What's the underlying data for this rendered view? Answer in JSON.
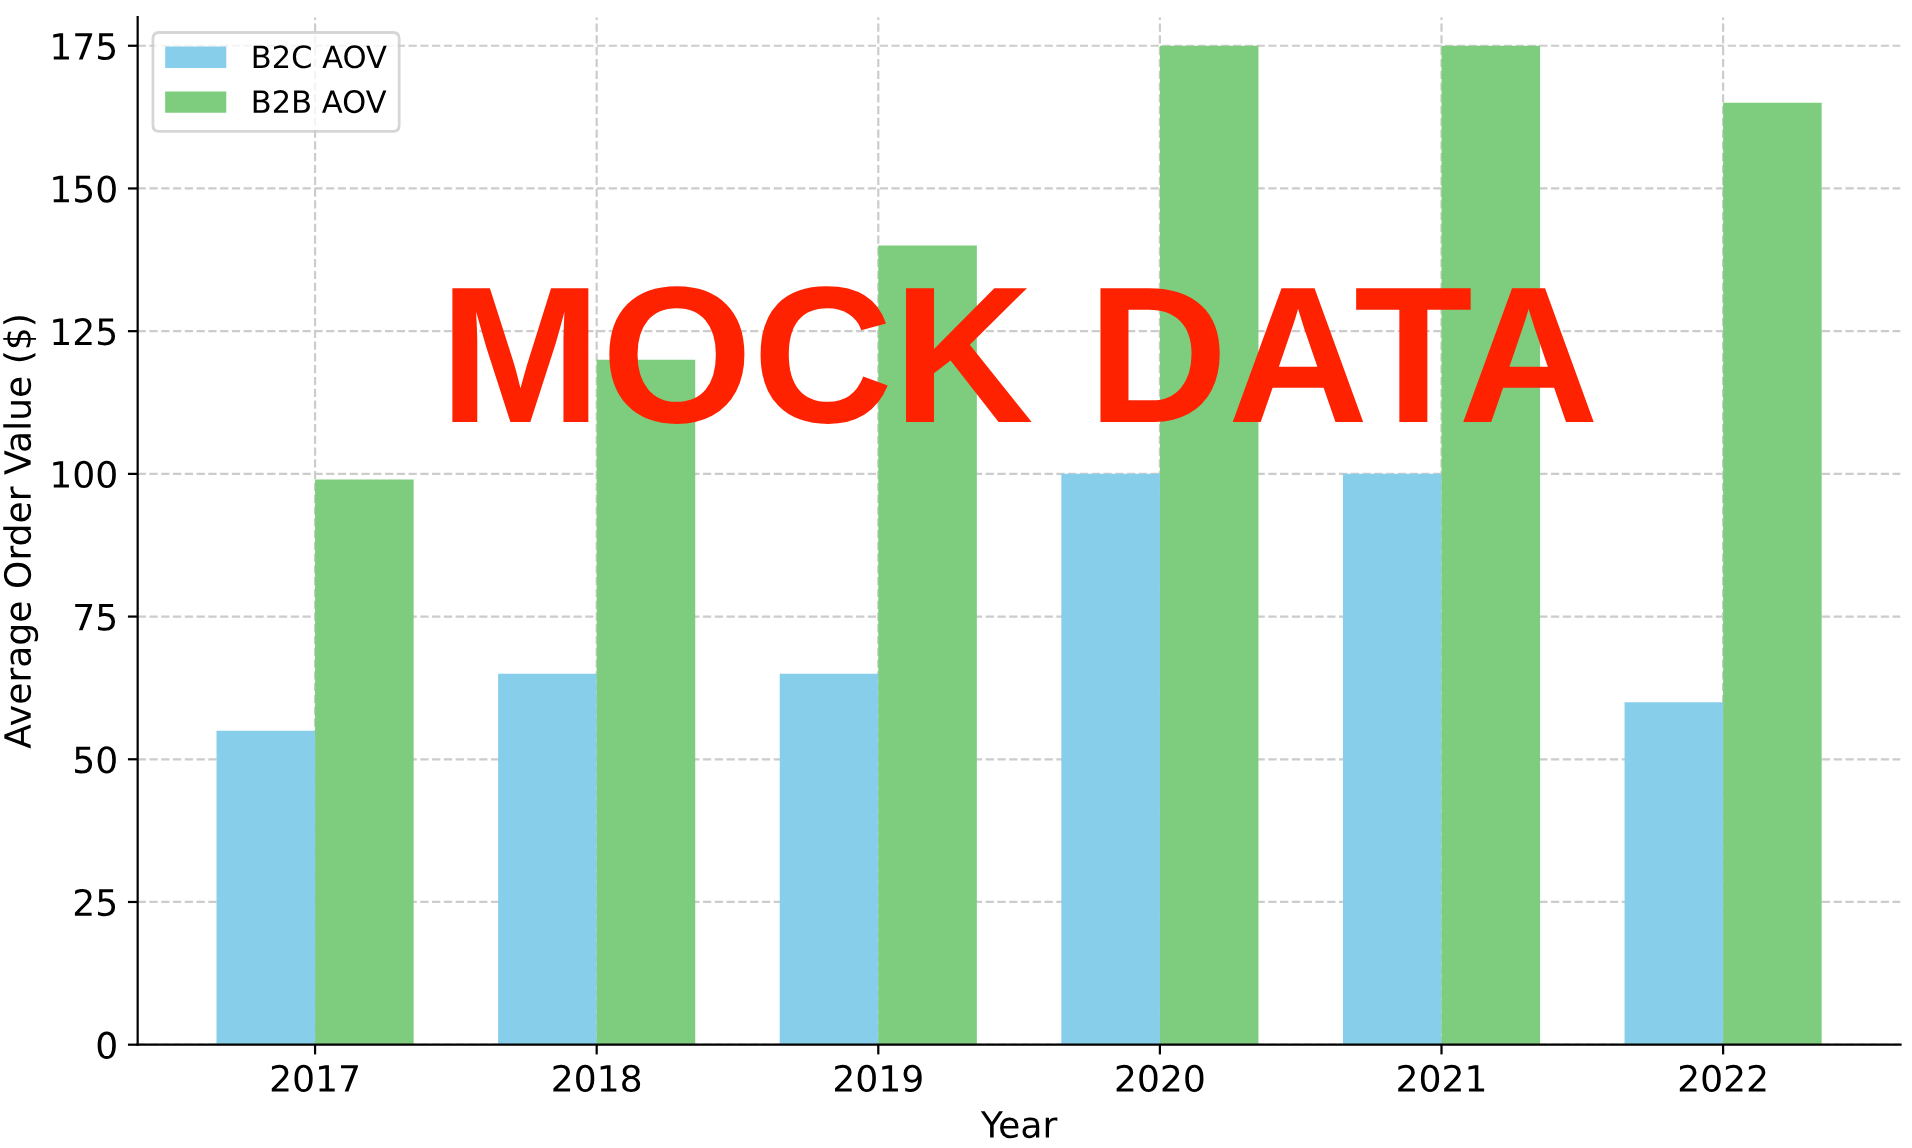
{
  "chart_data": {
    "type": "bar",
    "xlabel": "Year",
    "ylabel": "Average Order Value ($)",
    "categories": [
      "2017",
      "2018",
      "2019",
      "2020",
      "2021",
      "2022"
    ],
    "series": [
      {
        "name": "B2C AOV",
        "color": "#87ceeb",
        "values": [
          55,
          65,
          65,
          100,
          100,
          60
        ]
      },
      {
        "name": "B2B AOV",
        "color": "#7ecd7e",
        "values": [
          99,
          120,
          140,
          175,
          175,
          165
        ]
      }
    ],
    "ylim": [
      0,
      180
    ],
    "yticks": [
      0,
      25,
      50,
      75,
      100,
      125,
      150,
      175
    ],
    "grid": true,
    "legend": "top left",
    "annotations": [
      "MOCK DATA"
    ]
  }
}
